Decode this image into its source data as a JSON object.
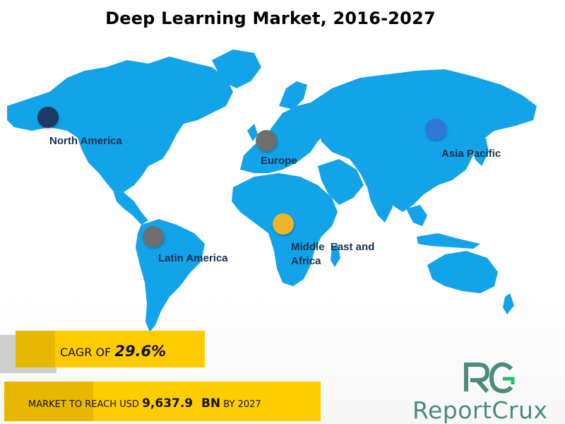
{
  "title": "Deep Learning Market, 2016-2027",
  "regions": [
    {
      "name": "North America",
      "marker_color": "#1c3a64"
    },
    {
      "name": "Europe",
      "marker_color": "#6e6e6e"
    },
    {
      "name": "Asia Pacific",
      "marker_color": "#2f78d8"
    },
    {
      "name": "Latin America",
      "marker_color": "#6e6e6e"
    },
    {
      "name_line1": "Middle  East and",
      "name_line2": "Africa",
      "marker_color": "#f0b429"
    }
  ],
  "stats": {
    "cagr_prefix": "CAGR OF ",
    "cagr_value": "29.6%",
    "market_prefix": "MARKET TO REACH USD ",
    "market_value": "9,637.9  BN",
    "market_suffix": " BY 2027"
  },
  "logo": {
    "monogram": "RC",
    "wordmark": "ReportCrux"
  },
  "colors": {
    "land": "#12a3e8",
    "banner": "#ffcc00",
    "label": "#17324f",
    "logo": "#4c8a7d"
  }
}
